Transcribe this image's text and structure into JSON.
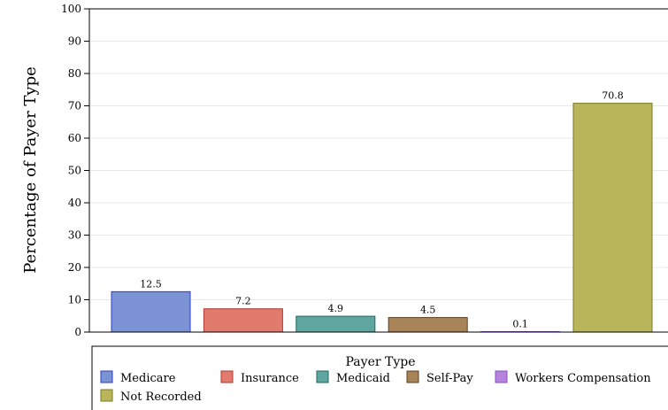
{
  "chart_data": {
    "type": "bar",
    "ylabel": "Percentage of Payer Type",
    "xlabel": "",
    "ylim": [
      0,
      100
    ],
    "yticks": [
      0,
      10,
      20,
      30,
      40,
      50,
      60,
      70,
      80,
      90,
      100
    ],
    "grid": true,
    "categories": [
      "Medicare",
      "Insurance",
      "Medicaid",
      "Self-Pay",
      "Workers Compensation",
      "Not Recorded"
    ],
    "values": [
      12.5,
      7.2,
      4.9,
      4.5,
      0.1,
      70.8
    ],
    "data_labels": [
      "12.5",
      "7.2",
      "4.9",
      "4.5",
      "0.1",
      "70.8"
    ],
    "colors": [
      "#7b93d4",
      "#e07b6e",
      "#5fa5a0",
      "#a88357",
      "#b784dd",
      "#b8b55a"
    ],
    "edge_colors": [
      "#2b3fc4",
      "#b03a30",
      "#1f6a62",
      "#5e4225",
      "#8a4fc4",
      "#7d7a25"
    ],
    "legend": {
      "title": "Payer Type",
      "position": "bottom"
    }
  }
}
